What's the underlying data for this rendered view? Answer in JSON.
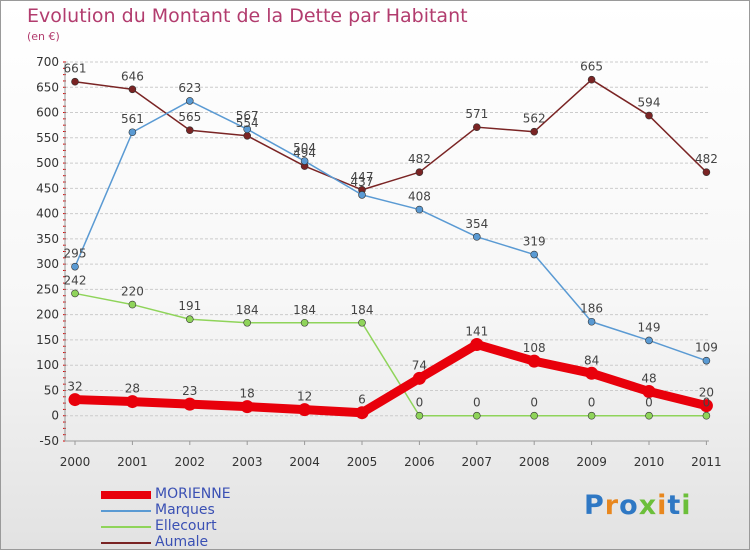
{
  "header": {
    "title": "Evolution du Montant de la Dette par Habitant",
    "subtitle": "(en €)"
  },
  "colors": {
    "title": "#b23c6e",
    "legend_text": "#3a50b4",
    "grid": "#cccccc",
    "axis_text": "#333333"
  },
  "chart_data": {
    "type": "line",
    "title": "Evolution du Montant de la Dette par Habitant",
    "subtitle": "(en €)",
    "categories": [
      "2000",
      "2001",
      "2002",
      "2003",
      "2004",
      "2005",
      "2006",
      "2007",
      "2008",
      "2009",
      "2010",
      "2011"
    ],
    "ylim": [
      -50,
      700
    ],
    "yticks": [
      -50,
      0,
      50,
      100,
      150,
      200,
      250,
      300,
      350,
      400,
      450,
      500,
      550,
      600,
      650,
      700
    ],
    "grid": "horizontal",
    "legend_position": "bottom-left",
    "series": [
      {
        "name": "MORIENNE",
        "color": "#e8000b",
        "width": 9,
        "values": [
          32,
          28,
          23,
          18,
          12,
          6,
          74,
          141,
          108,
          84,
          48,
          20
        ]
      },
      {
        "name": "Marques",
        "color": "#5a9ad3",
        "width": 1.5,
        "values": [
          295,
          561,
          623,
          567,
          504,
          437,
          408,
          354,
          319,
          186,
          149,
          109
        ]
      },
      {
        "name": "Ellecourt",
        "color": "#8fd45a",
        "width": 1.5,
        "values": [
          242,
          220,
          191,
          184,
          184,
          184,
          0,
          0,
          0,
          0,
          0,
          0
        ]
      },
      {
        "name": "Aumale",
        "color": "#7a2424",
        "width": 1.5,
        "values": [
          661,
          646,
          565,
          554,
          494,
          447,
          482,
          571,
          562,
          665,
          594,
          482
        ]
      }
    ]
  },
  "logo": {
    "text": "Proxiti",
    "letters": [
      "P",
      "r",
      "o",
      "x",
      "i",
      "t",
      "i"
    ],
    "letter_colors": [
      "#2f78c4",
      "#e8871e",
      "#2f78c4",
      "#6cbf3a",
      "#e8871e",
      "#2f78c4",
      "#6cbf3a"
    ]
  }
}
